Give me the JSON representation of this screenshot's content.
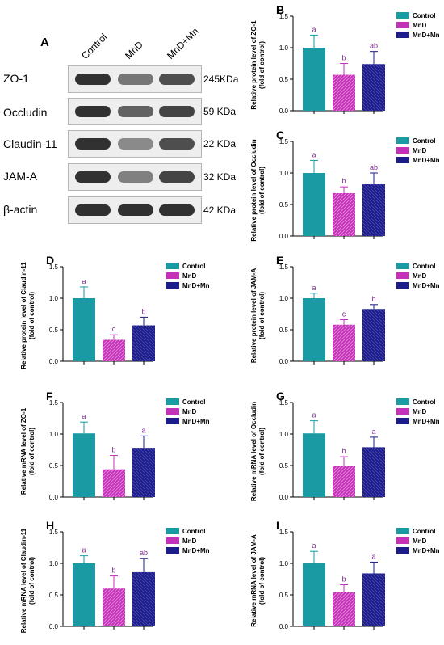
{
  "blot": {
    "letter": "A",
    "lanes": [
      "Control",
      "MnD",
      "MnD+Mn"
    ],
    "rows": [
      {
        "protein": "ZO-1",
        "size": "245KDa",
        "intensity": [
          0.95,
          0.6,
          0.8
        ]
      },
      {
        "protein": "Occludin",
        "size": "59 KDa",
        "intensity": [
          0.95,
          0.7,
          0.85
        ]
      },
      {
        "protein": "Claudin-11",
        "size": "22 KDa",
        "intensity": [
          0.95,
          0.5,
          0.8
        ]
      },
      {
        "protein": "JAM-A",
        "size": "32 KDa",
        "intensity": [
          0.95,
          0.55,
          0.85
        ]
      },
      {
        "protein": "β-actin",
        "size": "42 KDa",
        "intensity": [
          0.95,
          0.95,
          0.95
        ]
      }
    ]
  },
  "legend": [
    "Control",
    "MnD",
    "MnD+Mn"
  ],
  "colors": {
    "Control": "#1a9aa3",
    "MnD": "#c530b8",
    "MnD+Mn": "#1c1c8a",
    "letters": "#7a2f8c"
  },
  "chart_data": [
    {
      "panel": "B",
      "type": "bar",
      "categories": [
        "Control",
        "MnD",
        "MnD+Mn"
      ],
      "values": [
        1.0,
        0.57,
        0.74
      ],
      "errors": [
        0.2,
        0.18,
        0.2
      ],
      "letters": [
        "a",
        "b",
        "ab"
      ],
      "ylabel": [
        "Relative protein level of ZO-1",
        "(fold of control)"
      ],
      "ylim": [
        0,
        1.5
      ],
      "ticks": [
        "0.0",
        "0.5",
        "1.0",
        "1.5"
      ]
    },
    {
      "panel": "C",
      "type": "bar",
      "categories": [
        "Control",
        "MnD",
        "MnD+Mn"
      ],
      "values": [
        1.0,
        0.68,
        0.82
      ],
      "errors": [
        0.2,
        0.1,
        0.18
      ],
      "letters": [
        "a",
        "b",
        "ab"
      ],
      "ylabel": [
        "Relative protein level of Occludin",
        "(fold of control)"
      ],
      "ylim": [
        0,
        1.5
      ],
      "ticks": [
        "0.0",
        "0.5",
        "1.0",
        "1.5"
      ]
    },
    {
      "panel": "D",
      "type": "bar",
      "categories": [
        "Control",
        "MnD",
        "MnD+Mn"
      ],
      "values": [
        1.0,
        0.34,
        0.57
      ],
      "errors": [
        0.18,
        0.08,
        0.13
      ],
      "letters": [
        "a",
        "c",
        "b"
      ],
      "ylabel": [
        "Relative protein level of Claudin-11",
        "(fold of control)"
      ],
      "ylim": [
        0,
        1.5
      ],
      "ticks": [
        "0.0",
        "0.5",
        "1.0",
        "1.5"
      ]
    },
    {
      "panel": "E",
      "type": "bar",
      "categories": [
        "Control",
        "MnD",
        "MnD+Mn"
      ],
      "values": [
        1.0,
        0.58,
        0.83
      ],
      "errors": [
        0.08,
        0.08,
        0.07
      ],
      "letters": [
        "a",
        "c",
        "b"
      ],
      "ylabel": [
        "Relative protein level of JAM-A",
        "(fold of control)"
      ],
      "ylim": [
        0,
        1.5
      ],
      "ticks": [
        "0.0",
        "0.5",
        "1.0",
        "1.5"
      ]
    },
    {
      "panel": "F",
      "type": "bar",
      "categories": [
        "Control",
        "MnD",
        "MnD+Mn"
      ],
      "values": [
        1.01,
        0.44,
        0.78
      ],
      "errors": [
        0.18,
        0.22,
        0.19
      ],
      "letters": [
        "a",
        "b",
        "a"
      ],
      "ylabel": [
        "Relative mRNA level of ZO-1",
        "(fold of control)"
      ],
      "ylim": [
        0,
        1.5
      ],
      "ticks": [
        "0.0",
        "0.5",
        "1.0",
        "1.5"
      ]
    },
    {
      "panel": "G",
      "type": "bar",
      "categories": [
        "Control",
        "MnD",
        "MnD+Mn"
      ],
      "values": [
        1.01,
        0.5,
        0.79
      ],
      "errors": [
        0.2,
        0.14,
        0.16
      ],
      "letters": [
        "a",
        "b",
        "a"
      ],
      "ylabel": [
        "Relative mRNA level of Occludin",
        "(fold of control)"
      ],
      "ylim": [
        0,
        1.5
      ],
      "ticks": [
        "0.0",
        "0.5",
        "1.0",
        "1.5"
      ]
    },
    {
      "panel": "H",
      "type": "bar",
      "categories": [
        "Control",
        "MnD",
        "MnD+Mn"
      ],
      "values": [
        1.0,
        0.6,
        0.86
      ],
      "errors": [
        0.12,
        0.2,
        0.22
      ],
      "letters": [
        "a",
        "b",
        "ab"
      ],
      "ylabel": [
        "Relative mRNA level of Claudin-11",
        "(fold of control)"
      ],
      "ylim": [
        0,
        1.5
      ],
      "ticks": [
        "0.0",
        "0.5",
        "1.0",
        "1.5"
      ]
    },
    {
      "panel": "I",
      "type": "bar",
      "categories": [
        "Control",
        "MnD",
        "MnD+Mn"
      ],
      "values": [
        1.01,
        0.54,
        0.84
      ],
      "errors": [
        0.18,
        0.12,
        0.18
      ],
      "letters": [
        "a",
        "b",
        "a"
      ],
      "ylabel": [
        "Relative mRNA level of JAM-A",
        "(fold of control)"
      ],
      "ylim": [
        0,
        1.5
      ],
      "ticks": [
        "0.0",
        "0.5",
        "1.0",
        "1.5"
      ]
    }
  ]
}
